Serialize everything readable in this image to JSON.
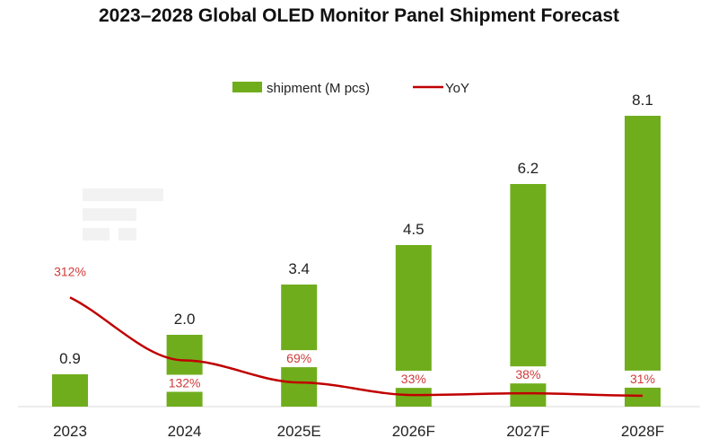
{
  "chart_data": {
    "type": "bar",
    "title": "2023–2028 Global OLED Monitor Panel Shipment Forecast",
    "categories": [
      "2023",
      "2024",
      "2025E",
      "2026F",
      "2027F",
      "2028F"
    ],
    "series": [
      {
        "name": "shipment (M pcs)",
        "type": "bar",
        "values": [
          0.9,
          2.0,
          3.4,
          4.5,
          6.2,
          8.1
        ],
        "labels": [
          "0.9",
          "2.0",
          "3.4",
          "4.5",
          "6.2",
          "8.1"
        ],
        "color": "#70ad1c"
      },
      {
        "name": "YoY",
        "type": "line",
        "values": [
          312,
          132,
          69,
          33,
          38,
          31
        ],
        "labels": [
          "312%",
          "132%",
          "69%",
          "33%",
          "38%",
          "31%"
        ],
        "color": "#c00000"
      }
    ],
    "legend": "top-center",
    "grid": false,
    "watermark": "TrendForce"
  }
}
